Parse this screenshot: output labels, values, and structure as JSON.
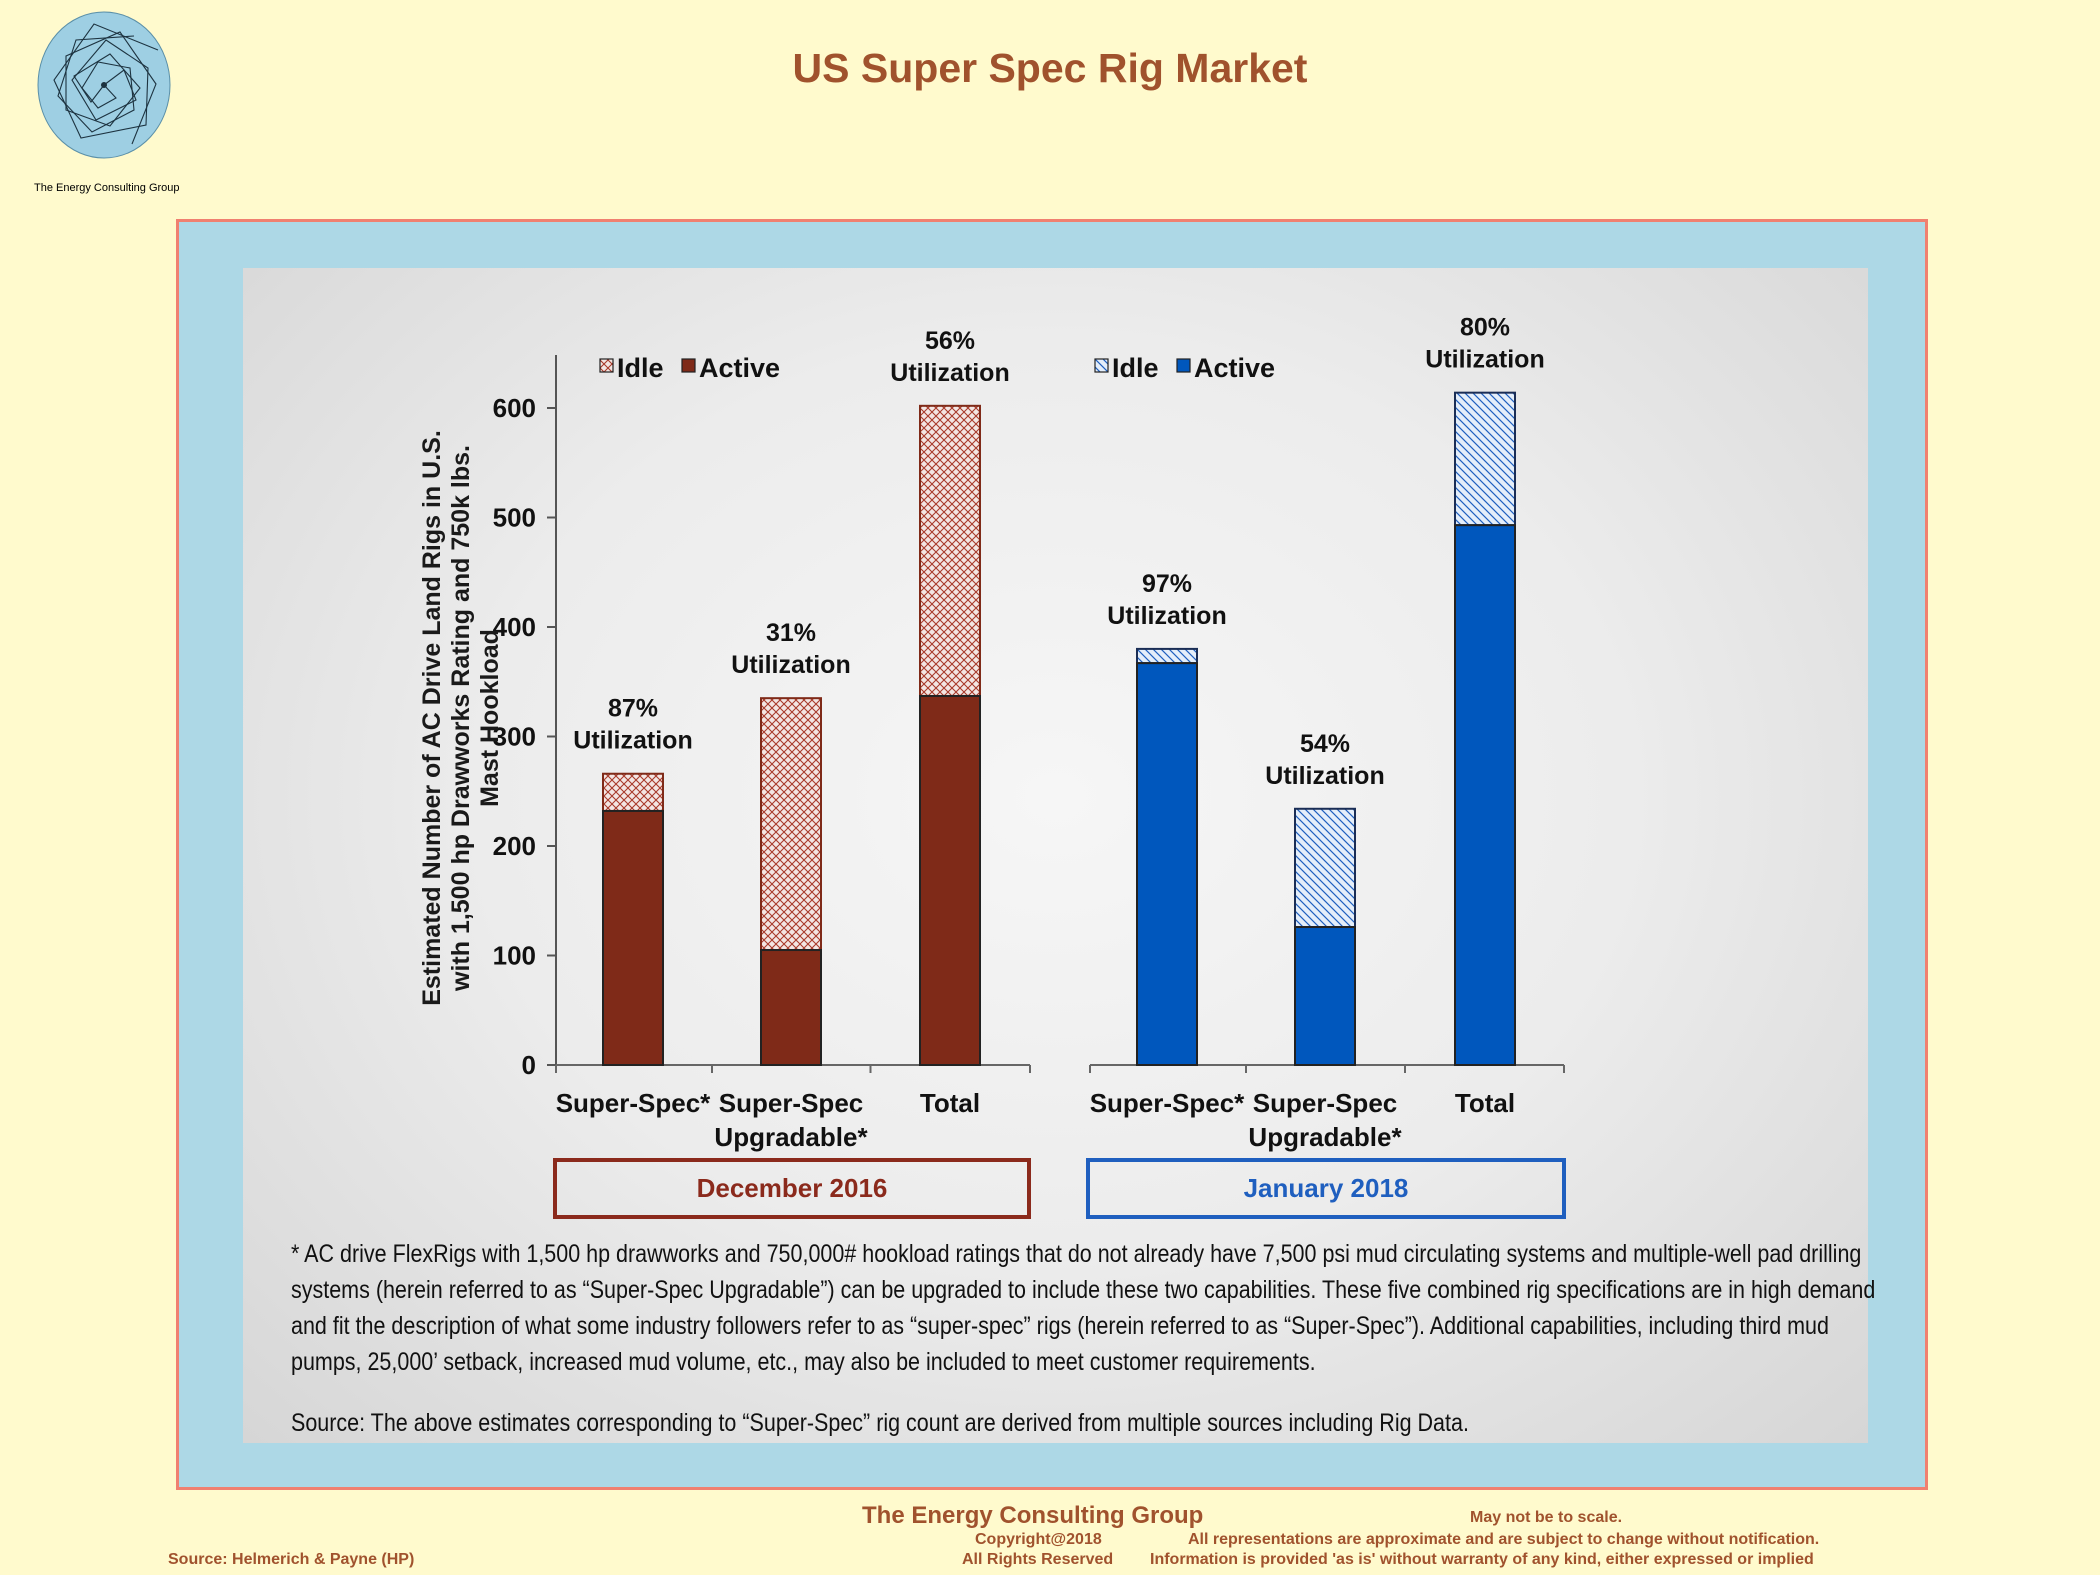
{
  "header": {
    "title": "US Super Spec Rig Market",
    "logo_caption": "The Energy Consulting Group"
  },
  "chart_data": {
    "type": "bar",
    "stacked": true,
    "ylabel_lines": [
      "Estimated Number of AC Drive Land Rigs in U.S.",
      "with 1,500 hp Drawworks Rating and 750k lbs.",
      "Mast Hookload"
    ],
    "ylim": [
      0,
      650
    ],
    "yticks": [
      0,
      100,
      200,
      300,
      400,
      500,
      600
    ],
    "grid": false,
    "panels": [
      {
        "period": "December 2016",
        "legend": [
          "Idle",
          "Active"
        ],
        "colors": {
          "active": "#7f2a18",
          "idle_hatch": "#a83a2a"
        },
        "categories": [
          [
            "Super-Spec*"
          ],
          [
            "Super-Spec",
            "Upgradable*"
          ],
          [
            "Total"
          ]
        ],
        "series": [
          {
            "name": "Active",
            "values": [
              232,
              105,
              337
            ]
          },
          {
            "name": "Idle",
            "values": [
              34,
              230,
              265
            ]
          }
        ],
        "annotations": [
          [
            "87%",
            "Utilization"
          ],
          [
            "31%",
            "Utilization"
          ],
          [
            "56%",
            "Utilization"
          ]
        ]
      },
      {
        "period": "January 2018",
        "legend": [
          "Idle",
          "Active"
        ],
        "colors": {
          "active": "#0057bd",
          "idle_hatch": "#1f5fbf"
        },
        "categories": [
          [
            "Super-Spec*"
          ],
          [
            "Super-Spec",
            "Upgradable*"
          ],
          [
            "Total"
          ]
        ],
        "series": [
          {
            "name": "Active",
            "values": [
              367,
              126,
              493
            ]
          },
          {
            "name": "Idle",
            "values": [
              13,
              108,
              121
            ]
          }
        ],
        "annotations": [
          [
            "97%",
            "Utilization"
          ],
          [
            "54%",
            "Utilization"
          ],
          [
            "80%",
            "Utilization"
          ]
        ]
      }
    ]
  },
  "notes": {
    "footnote": "* AC drive FlexRigs with 1,500 hp drawworks and 750,000# hookload ratings that do not already have 7,500 psi mud circulating systems and multiple-well pad drilling systems (herein referred to as “Super-Spec Upgradable”) can be upgraded to include these two capabilities. These five combined rig specifications are in high demand and fit the description of what some industry followers refer to as “super-spec” rigs (herein referred to as “Super-Spec”).  Additional capabilities, including third mud pumps, 25,000’ setback, increased mud volume, etc., may also be included to meet customer requirements.",
    "source": "Source: The above estimates corresponding to “Super-Spec” rig count are derived from multiple sources including Rig Data."
  },
  "footer": {
    "company": "The Energy Consulting Group",
    "copyright": "Copyright@2018",
    "rights": "All Rights Reserved",
    "source": "Source: Helmerich & Payne (HP)",
    "not_to_scale": "May not be to scale.",
    "disclaimer_1": "All representations are approximate and are subject to change without notification.",
    "disclaimer_2": "Information is provided 'as is' without warranty of any kind, either expressed or implied"
  }
}
